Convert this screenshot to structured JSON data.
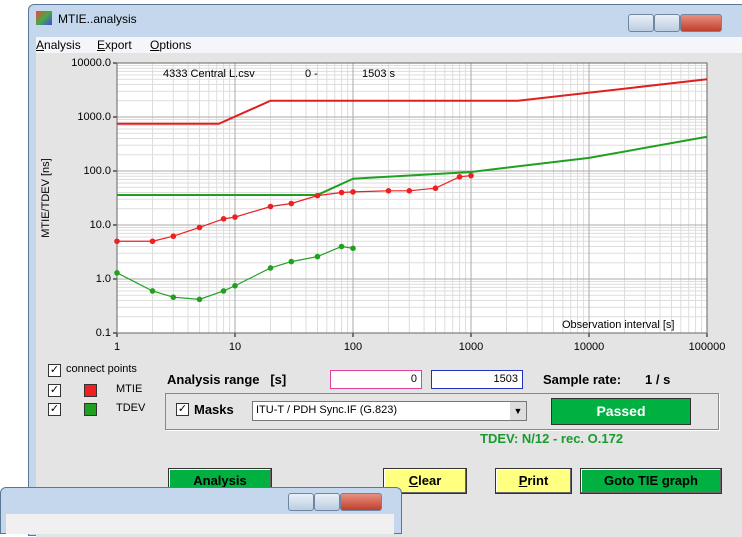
{
  "window": {
    "title": "MTIE..analysis",
    "menu": [
      "Analysis",
      "Export",
      "Options"
    ]
  },
  "chart_data": {
    "type": "line",
    "file": "4333 Central L.csv",
    "range_start": "0 -",
    "range_end": "1503 s",
    "xlabel": "Observation interval  [s]",
    "ylabel": "MTIE/TDEV [ns]",
    "xlim": [
      1,
      100000
    ],
    "ylim": [
      0.1,
      10000
    ],
    "log_x": true,
    "log_y": true,
    "grid": true,
    "xticks": [
      1,
      10,
      100,
      1000,
      10000,
      100000
    ],
    "yticks": [
      {
        "value": 10000,
        "label": "10000.0"
      },
      {
        "value": 1000,
        "label": "1000.0"
      },
      {
        "value": 100,
        "label": "100.0"
      },
      {
        "value": 10,
        "label": "10.0"
      },
      {
        "value": 1,
        "label": "1.0"
      },
      0.1
    ],
    "series": [
      {
        "color": "#e02020",
        "markers": false,
        "x": [
          1,
          7.3,
          20,
          2500,
          100000
        ],
        "values": [
          750,
          750,
          2000,
          2000,
          5000
        ]
      },
      {
        "color": "#20a020",
        "markers": false,
        "x": [
          1,
          50,
          100,
          1000,
          10000,
          100000
        ],
        "values": [
          36,
          36,
          72,
          96,
          175,
          430
        ]
      },
      {
        "name": "MTIE",
        "color": "#ee2020",
        "markers": true,
        "x": [
          1,
          2,
          3,
          5,
          8,
          10,
          20,
          30,
          50,
          80,
          100,
          200,
          300,
          500,
          800,
          1000
        ],
        "values": [
          5,
          5,
          6.2,
          9,
          13,
          14,
          22,
          25,
          35,
          40,
          41,
          43,
          43,
          48,
          78,
          82
        ]
      },
      {
        "name": "TDEV",
        "color": "#20a020",
        "markers": true,
        "x": [
          1,
          2,
          3,
          5,
          8,
          10,
          20,
          30,
          50,
          80,
          100
        ],
        "values": [
          1.3,
          0.6,
          0.46,
          0.42,
          0.6,
          0.75,
          1.6,
          2.1,
          2.6,
          4,
          3.7
        ]
      }
    ]
  },
  "controls": {
    "connect_points": "connect points",
    "analysis_range_label": "Analysis range   [s]",
    "range_from": "0",
    "range_to": "1503",
    "sample_rate_label": "Sample rate:",
    "sample_rate": "1 / s",
    "masks_label": "Masks",
    "mask_select": "ITU-T / PDH Sync.IF (G.823)",
    "status": "Passed",
    "tdev_note": "TDEV: N/12 - rec. O.172"
  },
  "buttons": [
    "Analysis",
    "Clear",
    "Print",
    "Goto TIE graph"
  ]
}
